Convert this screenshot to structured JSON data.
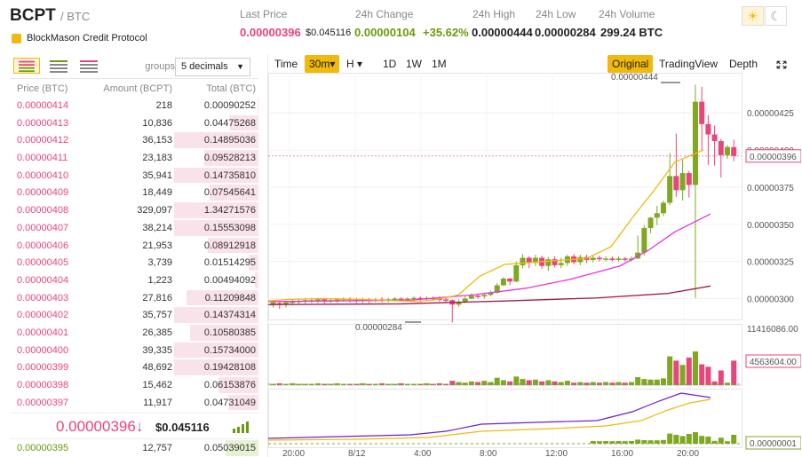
{
  "header": {
    "symbol": "BCPT",
    "quote": "/ BTC",
    "coin_name": "BlockMason Credit Protocol",
    "stats": [
      {
        "label": "Last Price",
        "value": "0.00000396",
        "sub": "$0.045116",
        "color": "#e8457c"
      },
      {
        "label": "24h Change",
        "value": "0.00000104",
        "sub": "+35.62%",
        "color": "#6a9b0d"
      },
      {
        "label": "24h High",
        "value": "0.00000444",
        "color": "#222"
      },
      {
        "label": "24h Low",
        "value": "0.00000284",
        "color": "#222"
      },
      {
        "label": "24h Volume",
        "value": "299.24 BTC",
        "color": "#222"
      }
    ],
    "theme_icons": [
      "sun-icon",
      "moon-icon"
    ]
  },
  "orderbook": {
    "groups_label": "groups",
    "groups_value": "5 decimals",
    "col_price": "Price (BTC)",
    "col_amount": "Amount (BCPT)",
    "col_total": "Total (BTC)",
    "asks": [
      {
        "price": "0.00000414",
        "amount": "218",
        "total": "0.00090252",
        "depth": 0.01
      },
      {
        "price": "0.00000413",
        "amount": "10,836",
        "total": "0.04475268",
        "depth": 0.34
      },
      {
        "price": "0.00000412",
        "amount": "36,153",
        "total": "0.14895036",
        "depth": 1.0
      },
      {
        "price": "0.00000411",
        "amount": "23,183",
        "total": "0.09528213",
        "depth": 0.64
      },
      {
        "price": "0.00000410",
        "amount": "35,941",
        "total": "0.14735810",
        "depth": 1.0
      },
      {
        "price": "0.00000409",
        "amount": "18,449",
        "total": "0.07545641",
        "depth": 0.58
      },
      {
        "price": "0.00000408",
        "amount": "329,097",
        "total": "1.34271576",
        "depth": 1.0
      },
      {
        "price": "0.00000407",
        "amount": "38,214",
        "total": "0.15553098",
        "depth": 1.0
      },
      {
        "price": "0.00000406",
        "amount": "21,953",
        "total": "0.08912918",
        "depth": 0.6
      },
      {
        "price": "0.00000405",
        "amount": "3,739",
        "total": "0.01514295",
        "depth": 0.12
      },
      {
        "price": "0.00000404",
        "amount": "1,223",
        "total": "0.00494092",
        "depth": 0.04
      },
      {
        "price": "0.00000403",
        "amount": "27,816",
        "total": "0.11209848",
        "depth": 0.85
      },
      {
        "price": "0.00000402",
        "amount": "35,757",
        "total": "0.14374314",
        "depth": 1.0
      },
      {
        "price": "0.00000401",
        "amount": "26,385",
        "total": "0.10580385",
        "depth": 0.81
      },
      {
        "price": "0.00000400",
        "amount": "39,335",
        "total": "0.15734000",
        "depth": 1.0
      },
      {
        "price": "0.00000399",
        "amount": "48,692",
        "total": "0.19428108",
        "depth": 1.0
      },
      {
        "price": "0.00000398",
        "amount": "15,462",
        "total": "0.06153876",
        "depth": 0.47
      },
      {
        "price": "0.00000397",
        "amount": "11,917",
        "total": "0.04731049",
        "depth": 0.36
      }
    ],
    "last_price": "0.00000396",
    "last_arrow": "↓",
    "last_usd": "$0.045116",
    "bids": [
      {
        "price": "0.00000395",
        "amount": "12,757",
        "total": "0.05039015",
        "depth": 0.39
      }
    ]
  },
  "chart_toolbar": {
    "intervals": [
      "Time",
      "30m",
      "H",
      "1D",
      "1W",
      "1M"
    ],
    "active_interval": "30m",
    "views": [
      "Original",
      "TradingView",
      "Depth"
    ],
    "active_view": "Original"
  },
  "chart_data": {
    "type": "candlestick",
    "price_axis": [
      "0.00000425",
      "0.00000400",
      "0.00000375",
      "0.00000350",
      "0.00000325",
      "0.00000300"
    ],
    "price_range": [
      2.86e-06,
      4.52e-06
    ],
    "current_price_tag": "0.00000396",
    "high_annotation": "0.00000444",
    "low_annotation": "0.00000284",
    "volume_axis_top": "11416086.00",
    "volume_tag": "4563604.00",
    "macd_tag": "0.00000001",
    "time_labels": [
      "20:00",
      "8/12",
      "4:00",
      "8:00",
      "12:00",
      "16:00",
      "20:00"
    ],
    "candles": [
      [
        2.955e-06,
        2.975e-06,
        2.99e-06,
        2.94e-06
      ],
      [
        2.97e-06,
        2.96e-06,
        2.98e-06,
        2.93e-06
      ],
      [
        2.96e-06,
        2.975e-06,
        2.985e-06,
        2.94e-06
      ],
      [
        2.975e-06,
        2.98e-06,
        2.995e-06,
        2.955e-06
      ],
      [
        2.98e-06,
        2.985e-06,
        3e-06,
        2.96e-06
      ],
      [
        2.985e-06,
        2.99e-06,
        3.005e-06,
        2.965e-06
      ],
      [
        2.99e-06,
        2.99e-06,
        3.005e-06,
        2.97e-06
      ],
      [
        2.99e-06,
        2.995e-06,
        3.005e-06,
        2.97e-06
      ],
      [
        2.995e-06,
        2.985e-06,
        3.005e-06,
        2.965e-06
      ],
      [
        2.985e-06,
        2.99e-06,
        3e-06,
        2.97e-06
      ],
      [
        2.99e-06,
        2.995e-06,
        3.005e-06,
        2.97e-06
      ],
      [
        2.995e-06,
        3e-06,
        3.01e-06,
        2.98e-06
      ],
      [
        3e-06,
        2.995e-06,
        3.01e-06,
        2.975e-06
      ],
      [
        2.995e-06,
        2.99e-06,
        3.005e-06,
        2.97e-06
      ],
      [
        2.99e-06,
        2.995e-06,
        3.005e-06,
        2.97e-06
      ],
      [
        2.995e-06,
        2.99e-06,
        3.005e-06,
        2.97e-06
      ],
      [
        2.99e-06,
        2.995e-06,
        3.005e-06,
        2.975e-06
      ],
      [
        2.995e-06,
        2.99e-06,
        3.01e-06,
        2.975e-06
      ],
      [
        2.99e-06,
        2.995e-06,
        3.005e-06,
        2.975e-06
      ],
      [
        2.995e-06,
        3e-06,
        3.01e-06,
        2.98e-06
      ],
      [
        3e-06,
        2.995e-06,
        3.01e-06,
        2.98e-06
      ],
      [
        2.995e-06,
        3e-06,
        3.01e-06,
        2.98e-06
      ],
      [
        3e-06,
        3.005e-06,
        3.015e-06,
        2.985e-06
      ],
      [
        3.005e-06,
        3e-06,
        3.015e-06,
        2.98e-06
      ],
      [
        3e-06,
        3.005e-06,
        3.015e-06,
        2.985e-06
      ],
      [
        3.005e-06,
        3e-06,
        3.015e-06,
        2.985e-06
      ],
      [
        3e-06,
        2.995e-06,
        3.015e-06,
        2.98e-06
      ],
      [
        2.995e-06,
        2.99e-06,
        3.005e-06,
        2.97e-06
      ],
      [
        2.99e-06,
        2.96e-06,
        2.995e-06,
        2.84e-06
      ],
      [
        2.96e-06,
        2.98e-06,
        2.995e-06,
        2.945e-06
      ],
      [
        2.98e-06,
        3e-06,
        3.015e-06,
        2.97e-06
      ],
      [
        3e-06,
        3.02e-06,
        3.035e-06,
        2.995e-06
      ],
      [
        3.02e-06,
        3.015e-06,
        3.03e-06,
        3e-06
      ],
      [
        3.015e-06,
        3.025e-06,
        3.04e-06,
        3e-06
      ],
      [
        3.025e-06,
        3.04e-06,
        3.055e-06,
        3.015e-06
      ],
      [
        3.04e-06,
        3.09e-06,
        3.105e-06,
        3.035e-06
      ],
      [
        3.09e-06,
        3.135e-06,
        3.145e-06,
        3.085e-06
      ],
      [
        3.135e-06,
        3.115e-06,
        3.14e-06,
        3.09e-06
      ],
      [
        3.115e-06,
        3.225e-06,
        3.25e-06,
        3.11e-06
      ],
      [
        3.225e-06,
        3.275e-06,
        3.3e-06,
        3.205e-06
      ],
      [
        3.275e-06,
        3.24e-06,
        3.285e-06,
        3.205e-06
      ],
      [
        3.24e-06,
        3.275e-06,
        3.295e-06,
        3.22e-06
      ],
      [
        3.275e-06,
        3.22e-06,
        3.29e-06,
        3.2e-06
      ],
      [
        3.22e-06,
        3.265e-06,
        3.28e-06,
        3.185e-06
      ],
      [
        3.265e-06,
        3.225e-06,
        3.285e-06,
        3.21e-06
      ],
      [
        3.225e-06,
        3.24e-06,
        3.275e-06,
        3.205e-06
      ],
      [
        3.24e-06,
        3.285e-06,
        3.295e-06,
        3.22e-06
      ],
      [
        3.285e-06,
        3.245e-06,
        3.3e-06,
        3.23e-06
      ],
      [
        3.245e-06,
        3.28e-06,
        3.295e-06,
        3.225e-06
      ],
      [
        3.28e-06,
        3.26e-06,
        3.295e-06,
        3.24e-06
      ],
      [
        3.26e-06,
        3.275e-06,
        3.29e-06,
        3.245e-06
      ],
      [
        3.275e-06,
        3.265e-06,
        3.29e-06,
        3.25e-06
      ],
      [
        3.265e-06,
        3.27e-06,
        3.285e-06,
        3.25e-06
      ],
      [
        3.27e-06,
        3.26e-06,
        3.285e-06,
        3.25e-06
      ],
      [
        3.26e-06,
        3.27e-06,
        3.285e-06,
        3.25e-06
      ],
      [
        3.27e-06,
        3.265e-06,
        3.28e-06,
        3.25e-06
      ],
      [
        3.265e-06,
        3.27e-06,
        3.285e-06,
        3.25e-06
      ],
      [
        3.27e-06,
        3.31e-06,
        3.425e-06,
        3.265e-06
      ],
      [
        3.31e-06,
        3.475e-06,
        3.495e-06,
        3.29e-06
      ],
      [
        3.475e-06,
        3.545e-06,
        3.55e-06,
        3.44e-06
      ],
      [
        3.545e-06,
        3.575e-06,
        3.625e-06,
        3.495e-06
      ],
      [
        3.575e-06,
        3.645e-06,
        3.66e-06,
        3.555e-06
      ],
      [
        3.645e-06,
        3.825e-06,
        3.98e-06,
        3.63e-06
      ],
      [
        3.825e-06,
        3.73e-06,
        4.11e-06,
        3.685e-06
      ],
      [
        3.73e-06,
        3.845e-06,
        3.935e-06,
        3.66e-06
      ],
      [
        3.845e-06,
        3.765e-06,
        3.86e-06,
        3.68e-06
      ],
      [
        3.765e-06,
        4.325e-06,
        4.44e-06,
        3.005e-06
      ],
      [
        4.325e-06,
        4.175e-06,
        4.425e-06,
        4e-06
      ],
      [
        4.175e-06,
        4.105e-06,
        4.235e-06,
        3.9e-06
      ],
      [
        4.105e-06,
        4.06e-06,
        4.165e-06,
        3.895e-06
      ],
      [
        4.06e-06,
        3.965e-06,
        4.075e-06,
        3.815e-06
      ],
      [
        3.965e-06,
        4.02e-06,
        4.035e-06,
        3.94e-06
      ],
      [
        4.02e-06,
        3.96e-06,
        4.07e-06,
        3.925e-06
      ]
    ],
    "ma_short": [
      [
        2.985e-06,
        0
      ],
      [
        2.995e-06,
        24
      ],
      [
        3e-06,
        58
      ],
      [
        2.995e-06,
        104
      ],
      [
        2.98e-06,
        170
      ],
      [
        2.995e-06,
        190
      ],
      [
        3.025e-06,
        214
      ],
      [
        3.15e-06,
        238
      ],
      [
        3.23e-06,
        266
      ],
      [
        3.25e-06,
        310
      ],
      [
        3.27e-06,
        358
      ],
      [
        3.35e-06,
        386
      ],
      [
        3.56e-06,
        412
      ],
      [
        3.725e-06,
        434
      ],
      [
        3.92e-06,
        458
      ],
      [
        4e-06,
        490
      ]
    ],
    "ma_mid": [
      [
        2.98e-06,
        0
      ],
      [
        2.99e-06,
        160
      ],
      [
        3.025e-06,
        230
      ],
      [
        3.07e-06,
        290
      ],
      [
        3.13e-06,
        340
      ],
      [
        3.22e-06,
        396
      ],
      [
        3.325e-06,
        428
      ],
      [
        3.45e-06,
        458
      ],
      [
        3.57e-06,
        498
      ]
    ],
    "ma_long": [
      [
        2.96e-06,
        0
      ],
      [
        2.965e-06,
        150
      ],
      [
        2.985e-06,
        270
      ],
      [
        3.005e-06,
        370
      ],
      [
        3.035e-06,
        450
      ],
      [
        3.085e-06,
        498
      ]
    ],
    "volumes": [
      0.02,
      0.03,
      0.02,
      0.03,
      0.02,
      0.02,
      0.02,
      0.03,
      0.02,
      0.02,
      0.03,
      0.02,
      0.02,
      0.02,
      0.03,
      0.02,
      0.02,
      0.03,
      0.02,
      0.02,
      0.03,
      0.02,
      0.02,
      0.02,
      0.03,
      0.02,
      0.03,
      0.02,
      0.07,
      0.05,
      0.04,
      0.06,
      0.05,
      0.07,
      0.05,
      0.12,
      0.08,
      0.06,
      0.14,
      0.1,
      0.08,
      0.09,
      0.06,
      0.08,
      0.06,
      0.05,
      0.07,
      0.04,
      0.05,
      0.04,
      0.05,
      0.04,
      0.05,
      0.04,
      0.05,
      0.04,
      0.05,
      0.13,
      0.1,
      0.09,
      0.09,
      0.11,
      0.47,
      0.4,
      0.33,
      0.45,
      0.55,
      0.34,
      0.3,
      0.06,
      0.24,
      0.04,
      0.4
    ]
  }
}
